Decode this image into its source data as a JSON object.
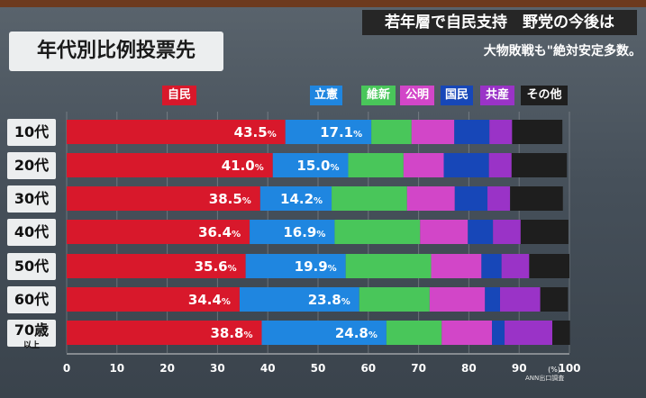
{
  "header": {
    "board_title": "年代別比例投票先",
    "headline": "若年層で自民支持　野党の今後は",
    "subheadline": "大物敗戦も\"絶対安定多数。"
  },
  "credit": "ANN出口調査",
  "colors": {
    "自民": "#d8182b",
    "立憲": "#1f86e0",
    "維新": "#49c65a",
    "公明": "#d246c8",
    "国民": "#1747b8",
    "共産": "#9a33c7",
    "その他": "#1e1e1e"
  },
  "chart_data": {
    "type": "bar",
    "orientation": "horizontal",
    "stacked": true,
    "categories": [
      "10代",
      "20代",
      "30代",
      "40代",
      "50代",
      "60代",
      "70歳以上"
    ],
    "category_display": [
      {
        "main": "10代",
        "small": ""
      },
      {
        "main": "20代",
        "small": ""
      },
      {
        "main": "30代",
        "small": ""
      },
      {
        "main": "40代",
        "small": ""
      },
      {
        "main": "50代",
        "small": ""
      },
      {
        "main": "60代",
        "small": ""
      },
      {
        "main": "70歳",
        "small": "以上"
      }
    ],
    "series": [
      {
        "name": "自民",
        "values": [
          43.5,
          41.0,
          38.5,
          36.4,
          35.6,
          34.4,
          38.8
        ],
        "labels": [
          "43.5",
          "41.0",
          "38.5",
          "36.4",
          "35.6",
          "34.4",
          "38.8"
        ]
      },
      {
        "name": "立憲",
        "values": [
          17.1,
          15.0,
          14.2,
          16.9,
          19.9,
          23.8,
          24.8
        ],
        "labels": [
          "17.1",
          "15.0",
          "14.2",
          "16.9",
          "19.9",
          "23.8",
          "24.8"
        ]
      },
      {
        "name": "維新",
        "values": [
          8.0,
          11.0,
          15.0,
          17.0,
          17.0,
          14.0,
          11.0
        ]
      },
      {
        "name": "公明",
        "values": [
          8.5,
          8.0,
          9.5,
          9.5,
          10.0,
          11.0,
          10.0
        ]
      },
      {
        "name": "国民",
        "values": [
          7.0,
          9.0,
          6.5,
          5.0,
          4.0,
          3.0,
          2.5
        ]
      },
      {
        "name": "共産",
        "values": [
          4.5,
          4.5,
          4.5,
          5.5,
          5.5,
          8.0,
          9.5
        ]
      },
      {
        "name": "その他",
        "values": [
          10.0,
          11.0,
          10.5,
          9.5,
          8.0,
          5.5,
          3.5
        ]
      }
    ],
    "legend": [
      "自民",
      "立憲",
      "維新",
      "公明",
      "国民",
      "共産",
      "その他"
    ],
    "label_unit": "%",
    "xlim": [
      0,
      100
    ],
    "xticks": [
      0,
      10,
      20,
      30,
      40,
      50,
      60,
      70,
      80,
      90,
      100
    ],
    "xtick_labels": [
      "0",
      "10",
      "20",
      "30",
      "40",
      "50",
      "60",
      "70",
      "80",
      "90",
      "100"
    ],
    "axis_unit": "(%)",
    "grid": true
  }
}
